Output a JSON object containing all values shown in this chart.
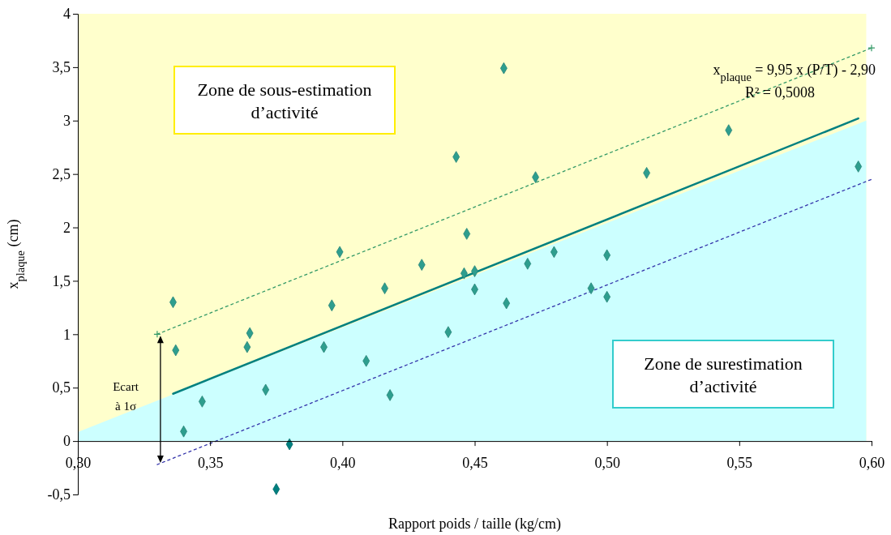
{
  "chart_data": {
    "type": "scatter",
    "xlabel": "Rapport poids / taille (kg/cm)",
    "ylabel": "x$_{plaque}$ (cm)",
    "xlim": [
      0.3,
      0.6
    ],
    "ylim": [
      -0.5,
      4
    ],
    "xticks": [
      {
        "value": 0.3,
        "label": "0,30"
      },
      {
        "value": 0.35,
        "label": "0,35"
      },
      {
        "value": 0.4,
        "label": "0,40"
      },
      {
        "value": 0.45,
        "label": "0,45"
      },
      {
        "value": 0.5,
        "label": "0,50"
      },
      {
        "value": 0.55,
        "label": "0,55"
      },
      {
        "value": 0.6,
        "label": "0,60"
      }
    ],
    "yticks": [
      {
        "value": -0.5,
        "label": "-0,5"
      },
      0,
      {
        "value": 0.5,
        "label": "0,5"
      },
      1,
      {
        "value": 1.5,
        "label": "1,5"
      },
      2,
      {
        "value": 2.5,
        "label": "2,5"
      },
      3,
      {
        "value": 3.5,
        "label": "3,5"
      },
      4
    ],
    "grid": false,
    "series": [
      {
        "type": "area",
        "color": "#ffffcc",
        "x": [
          0.3,
          0.598
        ],
        "values": [
          4,
          4
        ]
      },
      {
        "type": "area",
        "color": "#ccffff",
        "x": [
          0.3,
          0.598
        ],
        "values": [
          0.085,
          3.0
        ]
      },
      {
        "type": "line",
        "color": "#339966",
        "line_style": "dashed",
        "marker": "cross",
        "x": [
          0.33,
          0.6
        ],
        "values": [
          1.0,
          3.68
        ]
      },
      {
        "type": "line",
        "color": "#3333aa",
        "line_style": "dashed",
        "marker": "none",
        "x": [
          0.33,
          0.6
        ],
        "values": [
          -0.22,
          2.45
        ]
      },
      {
        "type": "line",
        "color": "#008080",
        "line_style": "solid",
        "marker": "none",
        "x": [
          0.336,
          0.595
        ],
        "values": [
          0.443,
          3.02
        ]
      },
      {
        "type": "scatter",
        "color": "#2e9e8e",
        "marker": "diamond",
        "x": [
          0.336,
          0.337,
          0.34,
          0.347,
          0.364,
          0.365,
          0.371,
          0.393,
          0.396,
          0.399,
          0.409,
          0.416,
          0.418,
          0.43,
          0.44,
          0.443,
          0.446,
          0.447,
          0.45,
          0.45,
          0.461,
          0.462,
          0.47,
          0.473,
          0.48,
          0.494,
          0.5,
          0.5,
          0.515,
          0.546,
          0.595
        ],
        "values": [
          1.3,
          0.85,
          0.09,
          0.37,
          0.88,
          1.01,
          0.48,
          0.88,
          1.27,
          1.77,
          0.75,
          1.43,
          0.43,
          1.65,
          1.02,
          2.66,
          1.57,
          1.94,
          1.42,
          1.59,
          3.49,
          1.29,
          1.66,
          2.47,
          1.77,
          1.43,
          1.74,
          1.35,
          2.51,
          2.91,
          2.57
        ]
      },
      {
        "type": "scatter",
        "color": "#007f7f",
        "marker": "diamond",
        "x": [
          0.375,
          0.38
        ],
        "values": [
          -0.45,
          -0.03
        ]
      }
    ],
    "annotations": [
      "Zone de sous-estimation d’activité",
      "Zone de surestimation d’activité",
      "x$_{plaque}$ = 9,95 x (P/T) - 2,90",
      "R² = 0,5008",
      "Ecart à 1σ"
    ]
  }
}
